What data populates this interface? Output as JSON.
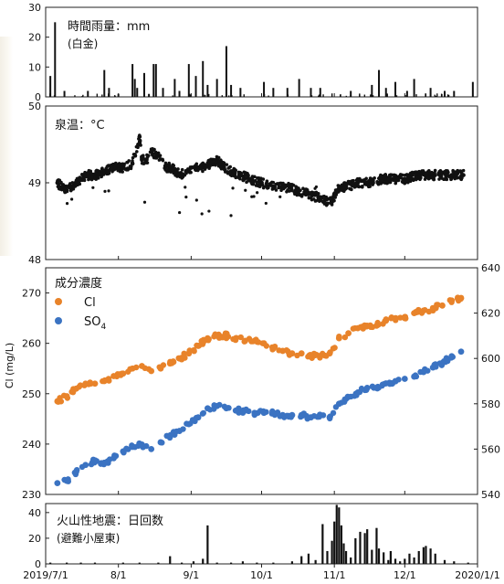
{
  "chart_data": [
    {
      "type": "bar",
      "title": "時間雨量：mm",
      "subtitle": "(白金)",
      "ylim": [
        0,
        30
      ],
      "yticks": [
        0,
        10,
        20,
        30
      ],
      "x": [
        "2019/7/3",
        "2019/7/5",
        "2019/7/9",
        "2019/7/19",
        "2019/7/26",
        "2019/7/28",
        "2019/8/1",
        "2019/8/7",
        "2019/8/8",
        "2019/8/9",
        "2019/8/12",
        "2019/8/14",
        "2019/8/16",
        "2019/8/17",
        "2019/8/20",
        "2019/8/25",
        "2019/8/27",
        "2019/8/31",
        "2019/9/3",
        "2019/9/6",
        "2019/9/8",
        "2019/9/12",
        "2019/9/16",
        "2019/9/18",
        "2019/9/22",
        "2019/10/2",
        "2019/10/6",
        "2019/10/12",
        "2019/10/17",
        "2019/10/22",
        "2019/10/26",
        "2019/11/8",
        "2019/11/17",
        "2019/11/20",
        "2019/11/23",
        "2019/11/27",
        "2019/12/2",
        "2019/12/5",
        "2019/12/12",
        "2019/12/18",
        "2019/12/22",
        "2019/12/30"
      ],
      "values": [
        7,
        25,
        2,
        2,
        9,
        3,
        1,
        11,
        6,
        3,
        8,
        1,
        11,
        11,
        3,
        6,
        2,
        11,
        7,
        12,
        4,
        6,
        17,
        4,
        3,
        5,
        3,
        3,
        6,
        3,
        3,
        2,
        4,
        9,
        3,
        5,
        2,
        6,
        3,
        2,
        2,
        5
      ]
    },
    {
      "type": "scatter",
      "title": "泉温：°C",
      "ylim": [
        48,
        50
      ],
      "yticks": [
        48,
        49,
        50
      ],
      "x": [
        "2019/7/6",
        "2019/7/10",
        "2019/7/14",
        "2019/7/18",
        "2019/7/22",
        "2019/7/26",
        "2019/7/30",
        "2019/8/3",
        "2019/8/7",
        "2019/8/10",
        "2019/8/11",
        "2019/8/13",
        "2019/8/15",
        "2019/8/18",
        "2019/8/21",
        "2019/8/24",
        "2019/8/27",
        "2019/8/30",
        "2019/9/3",
        "2019/9/6",
        "2019/9/9",
        "2019/9/12",
        "2019/9/15",
        "2019/9/18",
        "2019/9/22",
        "2019/9/26",
        "2019/10/1",
        "2019/10/6",
        "2019/10/11",
        "2019/10/16",
        "2019/10/21",
        "2019/10/26",
        "2019/10/31",
        "2019/11/2",
        "2019/11/6",
        "2019/11/11",
        "2019/11/16",
        "2019/11/21",
        "2019/11/26",
        "2019/12/1",
        "2019/12/6",
        "2019/12/11",
        "2019/12/16",
        "2019/12/21",
        "2019/12/26"
      ],
      "values": [
        49.0,
        48.9,
        49.0,
        49.1,
        49.1,
        49.15,
        49.2,
        49.2,
        49.25,
        49.6,
        49.3,
        49.3,
        49.4,
        49.35,
        49.2,
        49.2,
        49.1,
        49.15,
        49.2,
        49.2,
        49.25,
        49.3,
        49.2,
        49.15,
        49.1,
        49.05,
        49.0,
        48.95,
        48.95,
        48.9,
        48.85,
        48.8,
        48.75,
        48.9,
        48.95,
        49.0,
        49.0,
        49.05,
        49.05,
        49.05,
        49.1,
        49.1,
        49.1,
        49.1,
        49.1
      ]
    },
    {
      "type": "scatter",
      "title": "成分濃度",
      "ylabel": "Cl (mg/L)",
      "ylim": [
        230,
        275
      ],
      "yticks": [
        230,
        240,
        250,
        260,
        270
      ],
      "y2lim": [
        540,
        640
      ],
      "y2ticks": [
        540,
        560,
        580,
        600,
        620,
        640
      ],
      "legend": "top-left",
      "series": [
        {
          "name": "Cl",
          "color": "#e8832a",
          "axis": "left",
          "x": [
            "2019/7/6",
            "2019/7/10",
            "2019/7/14",
            "2019/7/18",
            "2019/7/22",
            "2019/7/26",
            "2019/7/30",
            "2019/8/3",
            "2019/8/7",
            "2019/8/11",
            "2019/8/15",
            "2019/8/19",
            "2019/8/23",
            "2019/8/27",
            "2019/8/31",
            "2019/9/4",
            "2019/9/8",
            "2019/9/12",
            "2019/9/16",
            "2019/9/20",
            "2019/9/24",
            "2019/9/28",
            "2019/10/2",
            "2019/10/6",
            "2019/10/10",
            "2019/10/14",
            "2019/10/18",
            "2019/10/22",
            "2019/10/26",
            "2019/10/30",
            "2019/11/3",
            "2019/11/7",
            "2019/11/11",
            "2019/11/15",
            "2019/11/19",
            "2019/11/23",
            "2019/11/27",
            "2019/12/1",
            "2019/12/5",
            "2019/12/9",
            "2019/12/13",
            "2019/12/17",
            "2019/12/21",
            "2019/12/25"
          ],
          "values": [
            248.5,
            249.5,
            251,
            252,
            252,
            252.5,
            253.5,
            254,
            255,
            255.5,
            254.5,
            255,
            256,
            257,
            258,
            259.5,
            261,
            261.5,
            261.5,
            261,
            260.5,
            260.5,
            260,
            259,
            258.5,
            258,
            258,
            257.5,
            257.5,
            258,
            261,
            262,
            263,
            263.5,
            263.5,
            264.5,
            265,
            265,
            266,
            266.5,
            267,
            267.5,
            268.5,
            269
          ]
        },
        {
          "name": "SO4",
          "color": "#3b73c2",
          "axis": "right",
          "x": [
            "2019/7/6",
            "2019/7/10",
            "2019/7/14",
            "2019/7/18",
            "2019/7/22",
            "2019/7/26",
            "2019/7/30",
            "2019/8/3",
            "2019/8/7",
            "2019/8/11",
            "2019/8/15",
            "2019/8/19",
            "2019/8/23",
            "2019/8/27",
            "2019/8/31",
            "2019/9/4",
            "2019/9/8",
            "2019/9/12",
            "2019/9/16",
            "2019/9/20",
            "2019/9/24",
            "2019/9/28",
            "2019/10/2",
            "2019/10/6",
            "2019/10/10",
            "2019/10/14",
            "2019/10/18",
            "2019/10/22",
            "2019/10/26",
            "2019/10/30",
            "2019/11/3",
            "2019/11/7",
            "2019/11/11",
            "2019/11/15",
            "2019/11/19",
            "2019/11/23",
            "2019/11/27",
            "2019/12/1",
            "2019/12/5",
            "2019/12/9",
            "2019/12/13",
            "2019/12/17",
            "2019/12/21",
            "2019/12/25"
          ],
          "values": [
            545,
            546,
            550,
            553,
            555,
            554,
            556,
            559,
            561,
            562,
            560,
            563,
            566,
            568,
            571,
            574,
            578,
            579,
            578,
            577,
            577,
            576,
            576,
            576,
            575,
            575,
            575,
            574,
            575,
            574,
            580,
            583,
            585,
            587,
            587,
            589,
            590,
            591,
            592,
            594,
            596,
            598,
            601,
            603
          ]
        }
      ]
    },
    {
      "type": "bar",
      "title": "火山性地震：日回数",
      "subtitle": "(避難小屋東)",
      "ylim": [
        0,
        47
      ],
      "yticks": [
        0,
        20,
        40
      ],
      "xlim": [
        "2019/7/1",
        "2020/1/1"
      ],
      "xticks": [
        "2019/7/1",
        "8/1",
        "9/1",
        "10/1",
        "11/1",
        "12/1",
        "2020/1/1"
      ],
      "x": [
        "2019/7/3",
        "2019/7/10",
        "2019/7/16",
        "2019/7/22",
        "2019/8/3",
        "2019/8/10",
        "2019/8/18",
        "2019/8/23",
        "2019/8/28",
        "2019/9/2",
        "2019/9/6",
        "2019/9/8",
        "2019/9/12",
        "2019/9/18",
        "2019/9/23",
        "2019/9/29",
        "2019/10/6",
        "2019/10/14",
        "2019/10/18",
        "2019/10/21",
        "2019/10/24",
        "2019/10/27",
        "2019/10/29",
        "2019/10/31",
        "2019/11/1",
        "2019/11/2",
        "2019/11/3",
        "2019/11/4",
        "2019/11/5",
        "2019/11/6",
        "2019/11/8",
        "2019/11/10",
        "2019/11/12",
        "2019/11/14",
        "2019/11/15",
        "2019/11/17",
        "2019/11/19",
        "2019/11/20",
        "2019/11/22",
        "2019/11/24",
        "2019/11/25",
        "2019/11/27",
        "2019/11/29",
        "2019/12/1",
        "2019/12/3",
        "2019/12/5",
        "2019/12/7",
        "2019/12/9",
        "2019/12/10",
        "2019/12/12",
        "2019/12/14",
        "2019/12/18",
        "2019/12/22",
        "2019/12/28"
      ],
      "values": [
        1,
        1,
        1,
        1,
        1,
        1,
        1,
        6,
        1,
        2,
        4,
        30,
        1,
        1,
        2,
        1,
        1,
        2,
        6,
        8,
        3,
        31,
        10,
        18,
        33,
        46,
        44,
        30,
        16,
        10,
        5,
        20,
        25,
        24,
        27,
        11,
        28,
        12,
        9,
        3,
        10,
        4,
        2,
        4,
        8,
        5,
        10,
        13,
        14,
        12,
        8,
        3,
        2,
        1
      ]
    }
  ]
}
